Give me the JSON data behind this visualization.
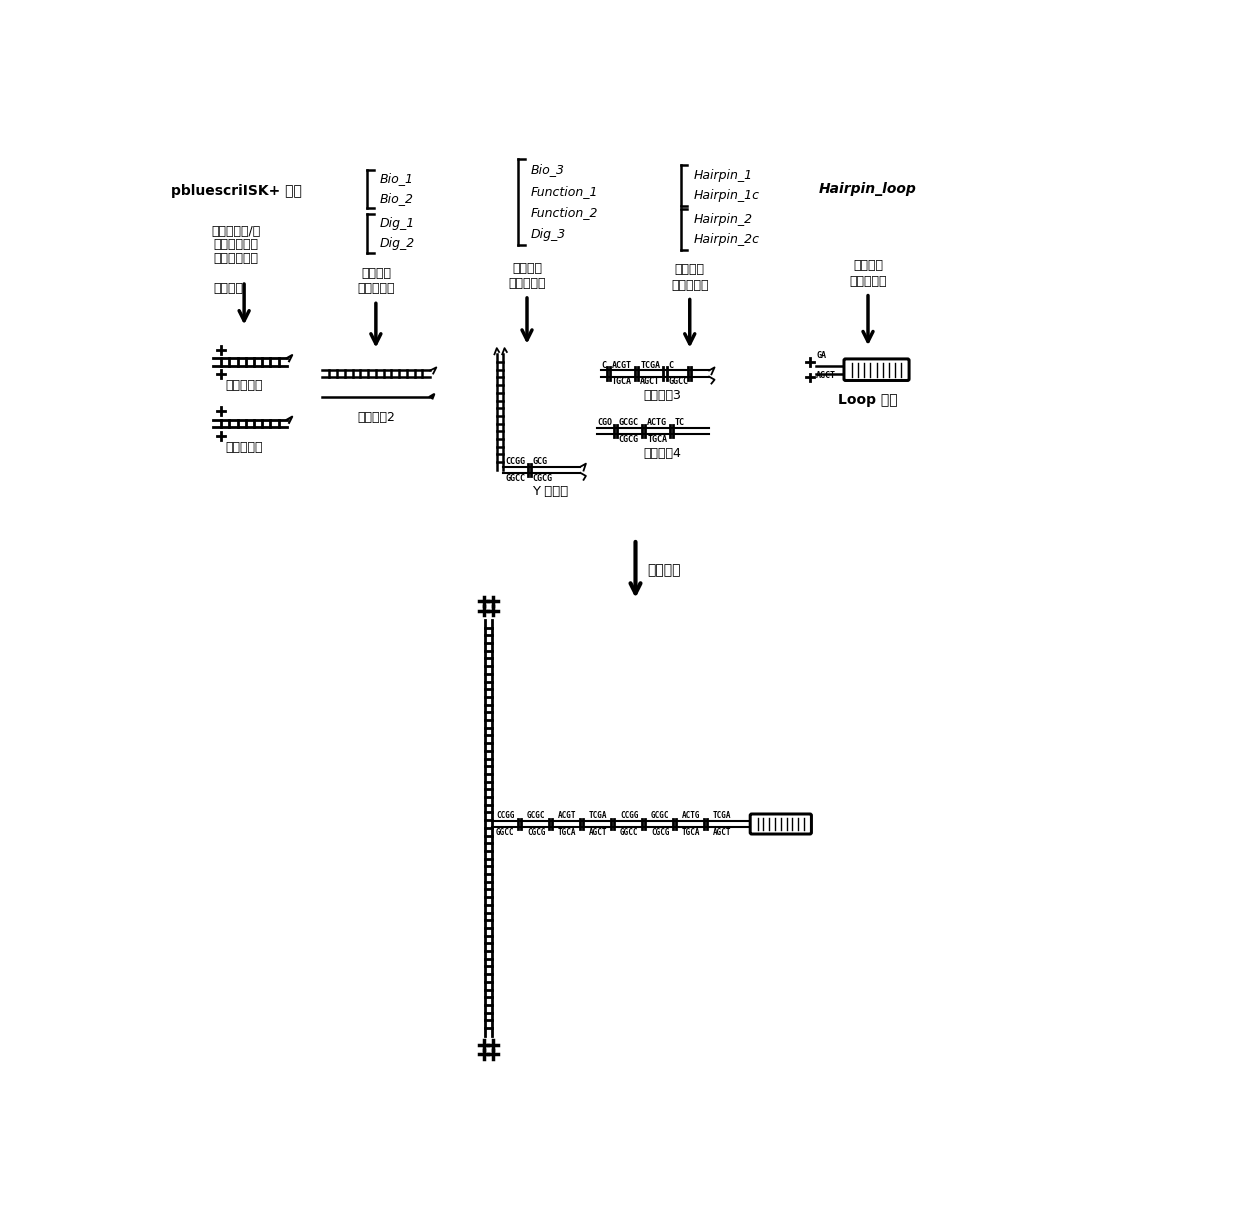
{
  "bg_color": "#ffffff",
  "col1_label": "pbluescriISK+ 质粒",
  "col1_step1_line1": "生物素修饰/地",
  "col1_step1_line2": "尚辛修饰的聚",
  "col1_step1_line3": "合酶链式反应",
  "col1_step2": "酶切反应",
  "col1_product1": "生物素把手",
  "col1_product2": "地尚辛把手",
  "col2_bio1": "Bio_1",
  "col2_bio2": "Bio_2",
  "col2_dig1": "Dig_1",
  "col2_dig2": "Dig_2",
  "col2_step1": "退火反应",
  "col2_step2": "磷酸化反应",
  "col2_product": "核酸片叵2",
  "col3_bio3": "Bio_3",
  "col3_func1": "Function_1",
  "col3_func2": "Function_2",
  "col3_dig3": "Dig_3",
  "col3_step1": "退火反应",
  "col3_step2": "磷酸化反应",
  "col3_product": "Y 字结构",
  "col4_hp1": "Hairpin_1",
  "col4_hp1c": "Hairpin_1c",
  "col4_hp2": "Hairpin_2",
  "col4_hp2c": "Hairpin_2c",
  "col4_step1": "退火反应",
  "col4_step2": "磷酸化反应",
  "col4_product1": "核酸片叵3",
  "col4_product2": "核酸片叵4",
  "col5_label": "Hairpin_loop",
  "col5_step1": "退火反应",
  "col5_step2": "磷酸化反应",
  "col5_product": "Loop 结构",
  "ligation": "连接反应"
}
